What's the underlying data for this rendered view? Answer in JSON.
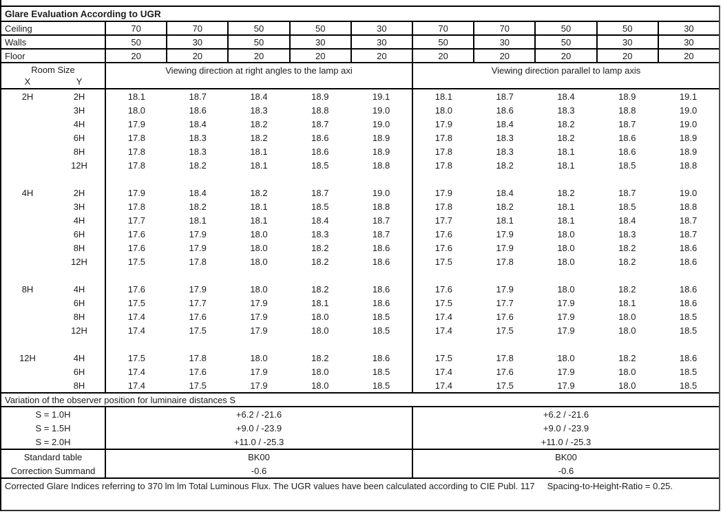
{
  "title": "Glare Evaluation According to UGR",
  "surface_rows": [
    {
      "label": "Ceiling",
      "values": [
        "70",
        "70",
        "50",
        "50",
        "30",
        "70",
        "70",
        "50",
        "50",
        "30"
      ]
    },
    {
      "label": "Walls",
      "values": [
        "50",
        "30",
        "50",
        "30",
        "30",
        "50",
        "30",
        "50",
        "30",
        "30"
      ]
    },
    {
      "label": "Floor",
      "values": [
        "20",
        "20",
        "20",
        "20",
        "20",
        "20",
        "20",
        "20",
        "20",
        "20"
      ]
    }
  ],
  "header": {
    "room_size": "Room Size",
    "x_label": "X",
    "y_label": "Y",
    "left_heading": "Viewing direction at right angles to the lamp axi",
    "right_heading": "Viewing direction parallel to lamp axis"
  },
  "ugr_groups": [
    {
      "x": "2H",
      "rows": [
        {
          "y": "2H",
          "right_angles": [
            "18.1",
            "18.7",
            "18.4",
            "18.9",
            "19.1"
          ],
          "parallel": [
            "18.1",
            "18.7",
            "18.4",
            "18.9",
            "19.1"
          ]
        },
        {
          "y": "3H",
          "right_angles": [
            "18.0",
            "18.6",
            "18.3",
            "18.8",
            "19.0"
          ],
          "parallel": [
            "18.0",
            "18.6",
            "18.3",
            "18.8",
            "19.0"
          ]
        },
        {
          "y": "4H",
          "right_angles": [
            "17.9",
            "18.4",
            "18.2",
            "18.7",
            "19.0"
          ],
          "parallel": [
            "17.9",
            "18.4",
            "18.2",
            "18.7",
            "19.0"
          ]
        },
        {
          "y": "6H",
          "right_angles": [
            "17.8",
            "18.3",
            "18.2",
            "18.6",
            "18.9"
          ],
          "parallel": [
            "17.8",
            "18.3",
            "18.2",
            "18.6",
            "18.9"
          ]
        },
        {
          "y": "8H",
          "right_angles": [
            "17.8",
            "18.3",
            "18.1",
            "18.6",
            "18.9"
          ],
          "parallel": [
            "17.8",
            "18.3",
            "18.1",
            "18.6",
            "18.9"
          ]
        },
        {
          "y": "12H",
          "right_angles": [
            "17.8",
            "18.2",
            "18.1",
            "18.5",
            "18.8"
          ],
          "parallel": [
            "17.8",
            "18.2",
            "18.1",
            "18.5",
            "18.8"
          ]
        }
      ]
    },
    {
      "x": "4H",
      "rows": [
        {
          "y": "2H",
          "right_angles": [
            "17.9",
            "18.4",
            "18.2",
            "18.7",
            "19.0"
          ],
          "parallel": [
            "17.9",
            "18.4",
            "18.2",
            "18.7",
            "19.0"
          ]
        },
        {
          "y": "3H",
          "right_angles": [
            "17.8",
            "18.2",
            "18.1",
            "18.5",
            "18.8"
          ],
          "parallel": [
            "17.8",
            "18.2",
            "18.1",
            "18.5",
            "18.8"
          ]
        },
        {
          "y": "4H",
          "right_angles": [
            "17.7",
            "18.1",
            "18.1",
            "18.4",
            "18.7"
          ],
          "parallel": [
            "17.7",
            "18.1",
            "18.1",
            "18.4",
            "18.7"
          ]
        },
        {
          "y": "6H",
          "right_angles": [
            "17.6",
            "17.9",
            "18.0",
            "18.3",
            "18.7"
          ],
          "parallel": [
            "17.6",
            "17.9",
            "18.0",
            "18.3",
            "18.7"
          ]
        },
        {
          "y": "8H",
          "right_angles": [
            "17.6",
            "17.9",
            "18.0",
            "18.2",
            "18.6"
          ],
          "parallel": [
            "17.6",
            "17.9",
            "18.0",
            "18.2",
            "18.6"
          ]
        },
        {
          "y": "12H",
          "right_angles": [
            "17.5",
            "17.8",
            "18.0",
            "18.2",
            "18.6"
          ],
          "parallel": [
            "17.5",
            "17.8",
            "18.0",
            "18.2",
            "18.6"
          ]
        }
      ]
    },
    {
      "x": "8H",
      "rows": [
        {
          "y": "4H",
          "right_angles": [
            "17.6",
            "17.9",
            "18.0",
            "18.2",
            "18.6"
          ],
          "parallel": [
            "17.6",
            "17.9",
            "18.0",
            "18.2",
            "18.6"
          ]
        },
        {
          "y": "6H",
          "right_angles": [
            "17.5",
            "17.7",
            "17.9",
            "18.1",
            "18.6"
          ],
          "parallel": [
            "17.5",
            "17.7",
            "17.9",
            "18.1",
            "18.6"
          ]
        },
        {
          "y": "8H",
          "right_angles": [
            "17.4",
            "17.6",
            "17.9",
            "18.0",
            "18.5"
          ],
          "parallel": [
            "17.4",
            "17.6",
            "17.9",
            "18.0",
            "18.5"
          ]
        },
        {
          "y": "12H",
          "right_angles": [
            "17.4",
            "17.5",
            "17.9",
            "18.0",
            "18.5"
          ],
          "parallel": [
            "17.4",
            "17.5",
            "17.9",
            "18.0",
            "18.5"
          ]
        }
      ]
    },
    {
      "x": "12H",
      "rows": [
        {
          "y": "4H",
          "right_angles": [
            "17.5",
            "17.8",
            "18.0",
            "18.2",
            "18.6"
          ],
          "parallel": [
            "17.5",
            "17.8",
            "18.0",
            "18.2",
            "18.6"
          ]
        },
        {
          "y": "6H",
          "right_angles": [
            "17.4",
            "17.6",
            "17.9",
            "18.0",
            "18.5"
          ],
          "parallel": [
            "17.4",
            "17.6",
            "17.9",
            "18.0",
            "18.5"
          ]
        },
        {
          "y": "8H",
          "right_angles": [
            "17.4",
            "17.5",
            "17.9",
            "18.0",
            "18.5"
          ],
          "parallel": [
            "17.4",
            "17.5",
            "17.9",
            "18.0",
            "18.5"
          ]
        }
      ]
    }
  ],
  "variation": {
    "heading": "Variation of the observer position for luminaire distances S",
    "rows": [
      {
        "label": "S = 1.0H",
        "left": "+6.2 / -21.6",
        "right": "+6.2 / -21.6"
      },
      {
        "label": "S = 1.5H",
        "left": "+9.0 / -23.9",
        "right": "+9.0 / -23.9"
      },
      {
        "label": "S = 2.0H",
        "left": "+11.0 / -25.3",
        "right": "+11.0 / -25.3"
      }
    ]
  },
  "standard": {
    "rows": [
      {
        "label": "Standard table",
        "left": "BK00",
        "right": "BK00"
      },
      {
        "label": "Correction Summand",
        "left": "-0.6",
        "right": "-0.6"
      }
    ]
  },
  "footer": {
    "note": "Corrected Glare Indices referring to 370 lm lm Total Luminous Flux. The UGR values have been calculated according to CIE Publ. 117",
    "ratio": "Spacing-to-Height-Ratio = 0.25."
  }
}
